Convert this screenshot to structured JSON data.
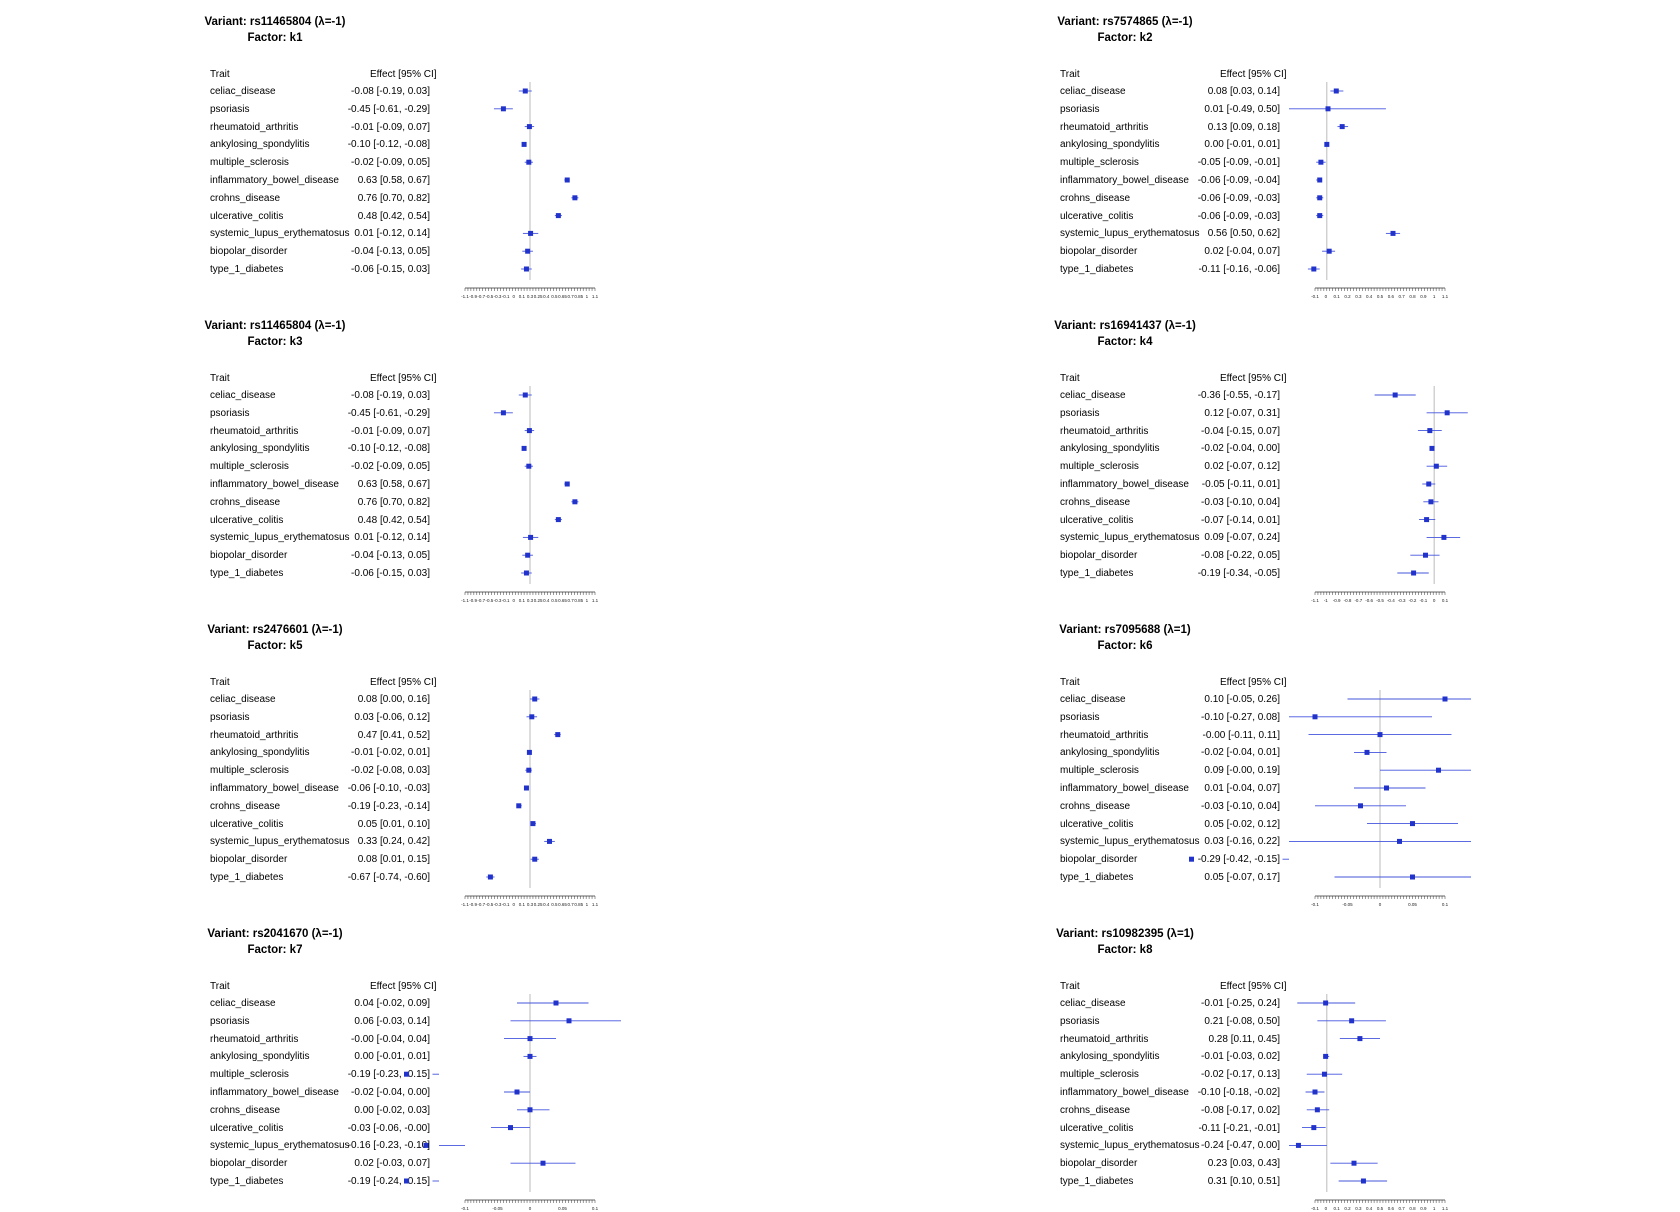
{
  "chart_data": [
    {
      "type": "forest",
      "title": "Variant: rs11465804 (λ=-1)",
      "subtitle": "Factor: k1",
      "column_headers": [
        "Trait",
        "Effect [95% CI]"
      ],
      "traits": [
        "celiac_disease",
        "psoriasis",
        "rheumatoid_arthritis",
        "ankylosing_spondylitis",
        "multiple_sclerosis",
        "inflammatory_bowel_disease",
        "crohns_disease",
        "ulcerative_colitis",
        "systemic_lupus_erythematosus",
        "biopolar_disorder",
        "type_1_diabetes"
      ],
      "effect_labels": [
        "-0.08 [-0.19, 0.03]",
        "-0.45 [-0.61, -0.29]",
        "-0.01 [-0.09, 0.07]",
        "-0.10 [-0.12, -0.08]",
        "-0.02 [-0.09, 0.05]",
        "0.63 [0.58, 0.67]",
        "0.76 [0.70, 0.82]",
        "0.48 [0.42, 0.54]",
        "0.01 [-0.12, 0.14]",
        "-0.04 [-0.13, 0.05]",
        "-0.06 [-0.15, 0.03]"
      ],
      "estimates": [
        -0.08,
        -0.45,
        -0.01,
        -0.1,
        -0.02,
        0.63,
        0.76,
        0.48,
        0.01,
        -0.04,
        -0.06
      ],
      "ci_lower": [
        -0.19,
        -0.61,
        -0.09,
        -0.12,
        -0.09,
        0.58,
        0.7,
        0.42,
        -0.12,
        -0.13,
        -0.15
      ],
      "ci_upper": [
        0.03,
        -0.29,
        0.07,
        -0.08,
        0.05,
        0.67,
        0.82,
        0.54,
        0.14,
        0.05,
        0.03
      ],
      "xlim": [
        -1.1,
        1.1
      ],
      "xticks": [
        "-1.1",
        "-0.9",
        "-0.7",
        "-0.5",
        "-0.3",
        "-0.1",
        "0",
        "0.1",
        "0.3",
        "0.25",
        "0.4",
        "0.5",
        "0.65",
        "0.7",
        "0.85",
        "1",
        "1.1"
      ]
    },
    {
      "type": "forest",
      "title": "Variant: rs7574865 (λ=-1)",
      "subtitle": "Factor: k2",
      "column_headers": [
        "Trait",
        "Effect [95% CI]"
      ],
      "traits": [
        "celiac_disease",
        "psoriasis",
        "rheumatoid_arthritis",
        "ankylosing_spondylitis",
        "multiple_sclerosis",
        "inflammatory_bowel_disease",
        "crohns_disease",
        "ulcerative_colitis",
        "systemic_lupus_erythematosus",
        "biopolar_disorder",
        "type_1_diabetes"
      ],
      "effect_labels": [
        "0.08 [0.03, 0.14]",
        "0.01 [-0.49, 0.50]",
        "0.13 [0.09, 0.18]",
        "0.00 [-0.01, 0.01]",
        "-0.05 [-0.09, -0.01]",
        "-0.06 [-0.09, -0.04]",
        "-0.06 [-0.09, -0.03]",
        "-0.06 [-0.09, -0.03]",
        "0.56 [0.50, 0.62]",
        "0.02 [-0.04, 0.07]",
        "-0.11 [-0.16, -0.06]"
      ],
      "estimates": [
        0.08,
        0.01,
        0.13,
        0.0,
        -0.05,
        -0.06,
        -0.06,
        -0.06,
        0.56,
        0.02,
        -0.11
      ],
      "ci_lower": [
        0.03,
        -0.49,
        0.09,
        -0.01,
        -0.09,
        -0.09,
        -0.09,
        -0.09,
        0.5,
        -0.04,
        -0.16
      ],
      "ci_upper": [
        0.14,
        0.5,
        0.18,
        0.01,
        -0.01,
        -0.04,
        -0.03,
        -0.03,
        0.62,
        0.07,
        -0.06
      ],
      "xlim": [
        -0.1,
        1.0
      ],
      "xticks": [
        "-0.1",
        "0",
        "0.1",
        "0.2",
        "0.3",
        "0.4",
        "0.5",
        "0.6",
        "0.7",
        "0.8",
        "0.9",
        "1",
        "1.1"
      ]
    },
    {
      "type": "forest",
      "title": "Variant: rs11465804 (λ=-1)",
      "subtitle": "Factor: k3",
      "column_headers": [
        "Trait",
        "Effect [95% CI]"
      ],
      "traits": [
        "celiac_disease",
        "psoriasis",
        "rheumatoid_arthritis",
        "ankylosing_spondylitis",
        "multiple_sclerosis",
        "inflammatory_bowel_disease",
        "crohns_disease",
        "ulcerative_colitis",
        "systemic_lupus_erythematosus",
        "biopolar_disorder",
        "type_1_diabetes"
      ],
      "effect_labels": [
        "-0.08 [-0.19, 0.03]",
        "-0.45 [-0.61, -0.29]",
        "-0.01 [-0.09, 0.07]",
        "-0.10 [-0.12, -0.08]",
        "-0.02 [-0.09, 0.05]",
        "0.63 [0.58, 0.67]",
        "0.76 [0.70, 0.82]",
        "0.48 [0.42, 0.54]",
        "0.01 [-0.12, 0.14]",
        "-0.04 [-0.13, 0.05]",
        "-0.06 [-0.15, 0.03]"
      ],
      "estimates": [
        -0.08,
        -0.45,
        -0.01,
        -0.1,
        -0.02,
        0.63,
        0.76,
        0.48,
        0.01,
        -0.04,
        -0.06
      ],
      "ci_lower": [
        -0.19,
        -0.61,
        -0.09,
        -0.12,
        -0.09,
        0.58,
        0.7,
        0.42,
        -0.12,
        -0.13,
        -0.15
      ],
      "ci_upper": [
        0.03,
        -0.29,
        0.07,
        -0.08,
        0.05,
        0.67,
        0.82,
        0.54,
        0.14,
        0.05,
        0.03
      ],
      "xlim": [
        -1.1,
        1.1
      ],
      "xticks": [
        "-1.1",
        "-0.9",
        "-0.7",
        "-0.5",
        "-0.3",
        "-0.1",
        "0",
        "0.1",
        "0.3",
        "0.25",
        "0.4",
        "0.5",
        "0.65",
        "0.7",
        "0.85",
        "1",
        "1.1"
      ]
    },
    {
      "type": "forest",
      "title": "Variant: rs16941437 (λ=-1)",
      "subtitle": "Factor: k4",
      "column_headers": [
        "Trait",
        "Effect [95% CI]"
      ],
      "traits": [
        "celiac_disease",
        "psoriasis",
        "rheumatoid_arthritis",
        "ankylosing_spondylitis",
        "multiple_sclerosis",
        "inflammatory_bowel_disease",
        "crohns_disease",
        "ulcerative_colitis",
        "systemic_lupus_erythematosus",
        "biopolar_disorder",
        "type_1_diabetes"
      ],
      "effect_labels": [
        "-0.36 [-0.55, -0.17]",
        "0.12 [-0.07, 0.31]",
        "-0.04 [-0.15, 0.07]",
        "-0.02 [-0.04, 0.00]",
        "0.02 [-0.07, 0.12]",
        "-0.05 [-0.11, 0.01]",
        "-0.03 [-0.10, 0.04]",
        "-0.07 [-0.14, 0.01]",
        "0.09 [-0.07, 0.24]",
        "-0.08 [-0.22, 0.05]",
        "-0.19 [-0.34, -0.05]"
      ],
      "estimates": [
        -0.36,
        0.12,
        -0.04,
        -0.02,
        0.02,
        -0.05,
        -0.03,
        -0.07,
        0.09,
        -0.08,
        -0.19
      ],
      "ci_lower": [
        -0.55,
        -0.07,
        -0.15,
        -0.04,
        -0.07,
        -0.11,
        -0.1,
        -0.14,
        -0.07,
        -0.22,
        -0.34
      ],
      "ci_upper": [
        -0.17,
        0.31,
        0.07,
        0.0,
        0.12,
        0.01,
        0.04,
        0.01,
        0.24,
        0.05,
        -0.05
      ],
      "xlim": [
        -1.1,
        0.1
      ],
      "xticks": [
        "-1.1",
        "-1",
        "-0.9",
        "-0.8",
        "-0.7",
        "-0.6",
        "-0.5",
        "-0.4",
        "-0.3",
        "-0.2",
        "-0.1",
        "0",
        "0.1"
      ]
    },
    {
      "type": "forest",
      "title": "Variant: rs2476601 (λ=-1)",
      "subtitle": "Factor: k5",
      "column_headers": [
        "Trait",
        "Effect [95% CI]"
      ],
      "traits": [
        "celiac_disease",
        "psoriasis",
        "rheumatoid_arthritis",
        "ankylosing_spondylitis",
        "multiple_sclerosis",
        "inflammatory_bowel_disease",
        "crohns_disease",
        "ulcerative_colitis",
        "systemic_lupus_erythematosus",
        "biopolar_disorder",
        "type_1_diabetes"
      ],
      "effect_labels": [
        "0.08 [0.00, 0.16]",
        "0.03 [-0.06, 0.12]",
        "0.47 [0.41, 0.52]",
        "-0.01 [-0.02, 0.01]",
        "-0.02 [-0.08, 0.03]",
        "-0.06 [-0.10, -0.03]",
        "-0.19 [-0.23, -0.14]",
        "0.05 [0.01, 0.10]",
        "0.33 [0.24, 0.42]",
        "0.08 [0.01, 0.15]",
        "-0.67 [-0.74, -0.60]"
      ],
      "estimates": [
        0.08,
        0.03,
        0.47,
        -0.01,
        -0.02,
        -0.06,
        -0.19,
        0.05,
        0.33,
        0.08,
        -0.67
      ],
      "ci_lower": [
        0.0,
        -0.06,
        0.41,
        -0.02,
        -0.08,
        -0.1,
        -0.23,
        0.01,
        0.24,
        0.01,
        -0.74
      ],
      "ci_upper": [
        0.16,
        0.12,
        0.52,
        0.01,
        0.03,
        -0.03,
        -0.14,
        0.1,
        0.42,
        0.15,
        -0.6
      ],
      "xlim": [
        -1.1,
        1.1
      ],
      "xticks": [
        "-1.1",
        "-0.9",
        "-0.7",
        "-0.5",
        "-0.3",
        "-0.1",
        "0",
        "0.1",
        "0.3",
        "0.25",
        "0.4",
        "0.5",
        "0.65",
        "0.7",
        "0.85",
        "1",
        "1.1"
      ]
    },
    {
      "type": "forest",
      "title": "Variant: rs7095688 (λ=1)",
      "subtitle": "Factor: k6",
      "column_headers": [
        "Trait",
        "Effect [95% CI]"
      ],
      "traits": [
        "celiac_disease",
        "psoriasis",
        "rheumatoid_arthritis",
        "ankylosing_spondylitis",
        "multiple_sclerosis",
        "inflammatory_bowel_disease",
        "crohns_disease",
        "ulcerative_colitis",
        "systemic_lupus_erythematosus",
        "biopolar_disorder",
        "type_1_diabetes"
      ],
      "effect_labels": [
        "0.10 [-0.05, 0.26]",
        "-0.10 [-0.27, 0.08]",
        "-0.00 [-0.11, 0.11]",
        "-0.02 [-0.04, 0.01]",
        "0.09 [-0.00, 0.19]",
        "0.01 [-0.04, 0.07]",
        "-0.03 [-0.10, 0.04]",
        "0.05 [-0.02, 0.12]",
        "0.03 [-0.16, 0.22]",
        "-0.29 [-0.42, -0.15]",
        "0.05 [-0.07, 0.17]"
      ],
      "estimates": [
        0.1,
        -0.1,
        -0.0,
        -0.02,
        0.09,
        0.01,
        -0.03,
        0.05,
        0.03,
        -0.29,
        0.05
      ],
      "ci_lower": [
        -0.05,
        -0.27,
        -0.11,
        -0.04,
        -0.0,
        -0.04,
        -0.1,
        -0.02,
        -0.16,
        -0.42,
        -0.07
      ],
      "ci_upper": [
        0.26,
        0.08,
        0.11,
        0.01,
        0.19,
        0.07,
        0.04,
        0.12,
        0.22,
        -0.15,
        0.17
      ],
      "xlim": [
        -0.1,
        0.1
      ],
      "xticks": [
        "-0.1",
        "-0.05",
        "0",
        "0.05",
        "0.1"
      ]
    },
    {
      "type": "forest",
      "title": "Variant: rs2041670 (λ=-1)",
      "subtitle": "Factor: k7",
      "column_headers": [
        "Trait",
        "Effect [95% CI]"
      ],
      "traits": [
        "celiac_disease",
        "psoriasis",
        "rheumatoid_arthritis",
        "ankylosing_spondylitis",
        "multiple_sclerosis",
        "inflammatory_bowel_disease",
        "crohns_disease",
        "ulcerative_colitis",
        "systemic_lupus_erythematosus",
        "biopolar_disorder",
        "type_1_diabetes"
      ],
      "effect_labels": [
        "0.04 [-0.02, 0.09]",
        "0.06 [-0.03, 0.14]",
        "-0.00 [-0.04, 0.04]",
        "0.00 [-0.01, 0.01]",
        "-0.19 [-0.23, -0.15]",
        "-0.02 [-0.04, 0.00]",
        "0.00 [-0.02, 0.03]",
        "-0.03 [-0.06, -0.00]",
        "-0.16 [-0.23, -0.10]",
        "0.02 [-0.03, 0.07]",
        "-0.19 [-0.24, -0.15]"
      ],
      "estimates": [
        0.04,
        0.06,
        -0.0,
        0.0,
        -0.19,
        -0.02,
        0.0,
        -0.03,
        -0.16,
        0.02,
        -0.19
      ],
      "ci_lower": [
        -0.02,
        -0.03,
        -0.04,
        -0.01,
        -0.23,
        -0.04,
        -0.02,
        -0.06,
        -0.23,
        -0.03,
        -0.24
      ],
      "ci_upper": [
        0.09,
        0.14,
        0.04,
        0.01,
        -0.15,
        0.0,
        0.03,
        -0.0,
        -0.1,
        0.07,
        -0.15
      ],
      "xlim": [
        -0.1,
        0.1
      ],
      "xticks": [
        "-0.1",
        "-0.05",
        "0",
        "0.05",
        "0.1"
      ]
    },
    {
      "type": "forest",
      "title": "Variant: rs10982395 (λ=1)",
      "subtitle": "Factor: k8",
      "column_headers": [
        "Trait",
        "Effect [95% CI]"
      ],
      "traits": [
        "celiac_disease",
        "psoriasis",
        "rheumatoid_arthritis",
        "ankylosing_spondylitis",
        "multiple_sclerosis",
        "inflammatory_bowel_disease",
        "crohns_disease",
        "ulcerative_colitis",
        "systemic_lupus_erythematosus",
        "biopolar_disorder",
        "type_1_diabetes"
      ],
      "effect_labels": [
        "-0.01 [-0.25, 0.24]",
        "0.21 [-0.08, 0.50]",
        "0.28 [0.11, 0.45]",
        "-0.01 [-0.03, 0.02]",
        "-0.02 [-0.17, 0.13]",
        "-0.10 [-0.18, -0.02]",
        "-0.08 [-0.17, 0.02]",
        "-0.11 [-0.21, -0.01]",
        "-0.24 [-0.47, 0.00]",
        "0.23 [0.03, 0.43]",
        "0.31 [0.10, 0.51]"
      ],
      "estimates": [
        -0.01,
        0.21,
        0.28,
        -0.01,
        -0.02,
        -0.1,
        -0.08,
        -0.11,
        -0.24,
        0.23,
        0.31
      ],
      "ci_lower": [
        -0.25,
        -0.08,
        0.11,
        -0.03,
        -0.17,
        -0.18,
        -0.17,
        -0.21,
        -0.47,
        0.03,
        0.1
      ],
      "ci_upper": [
        0.24,
        0.5,
        0.45,
        0.02,
        0.13,
        -0.02,
        0.02,
        -0.01,
        0.0,
        0.43,
        0.51
      ],
      "xlim": [
        -0.1,
        1.0
      ],
      "xticks": [
        "-0.1",
        "0",
        "0.1",
        "0.2",
        "0.3",
        "0.4",
        "0.5",
        "0.6",
        "0.7",
        "0.8",
        "0.9",
        "1",
        "1.1"
      ]
    }
  ],
  "colors": {
    "point": "#2233cc",
    "ci_line": "#4455dd",
    "ci_line_red": "#cc2222",
    "ref_line": "#bbbbbb",
    "axis": "#333333"
  }
}
